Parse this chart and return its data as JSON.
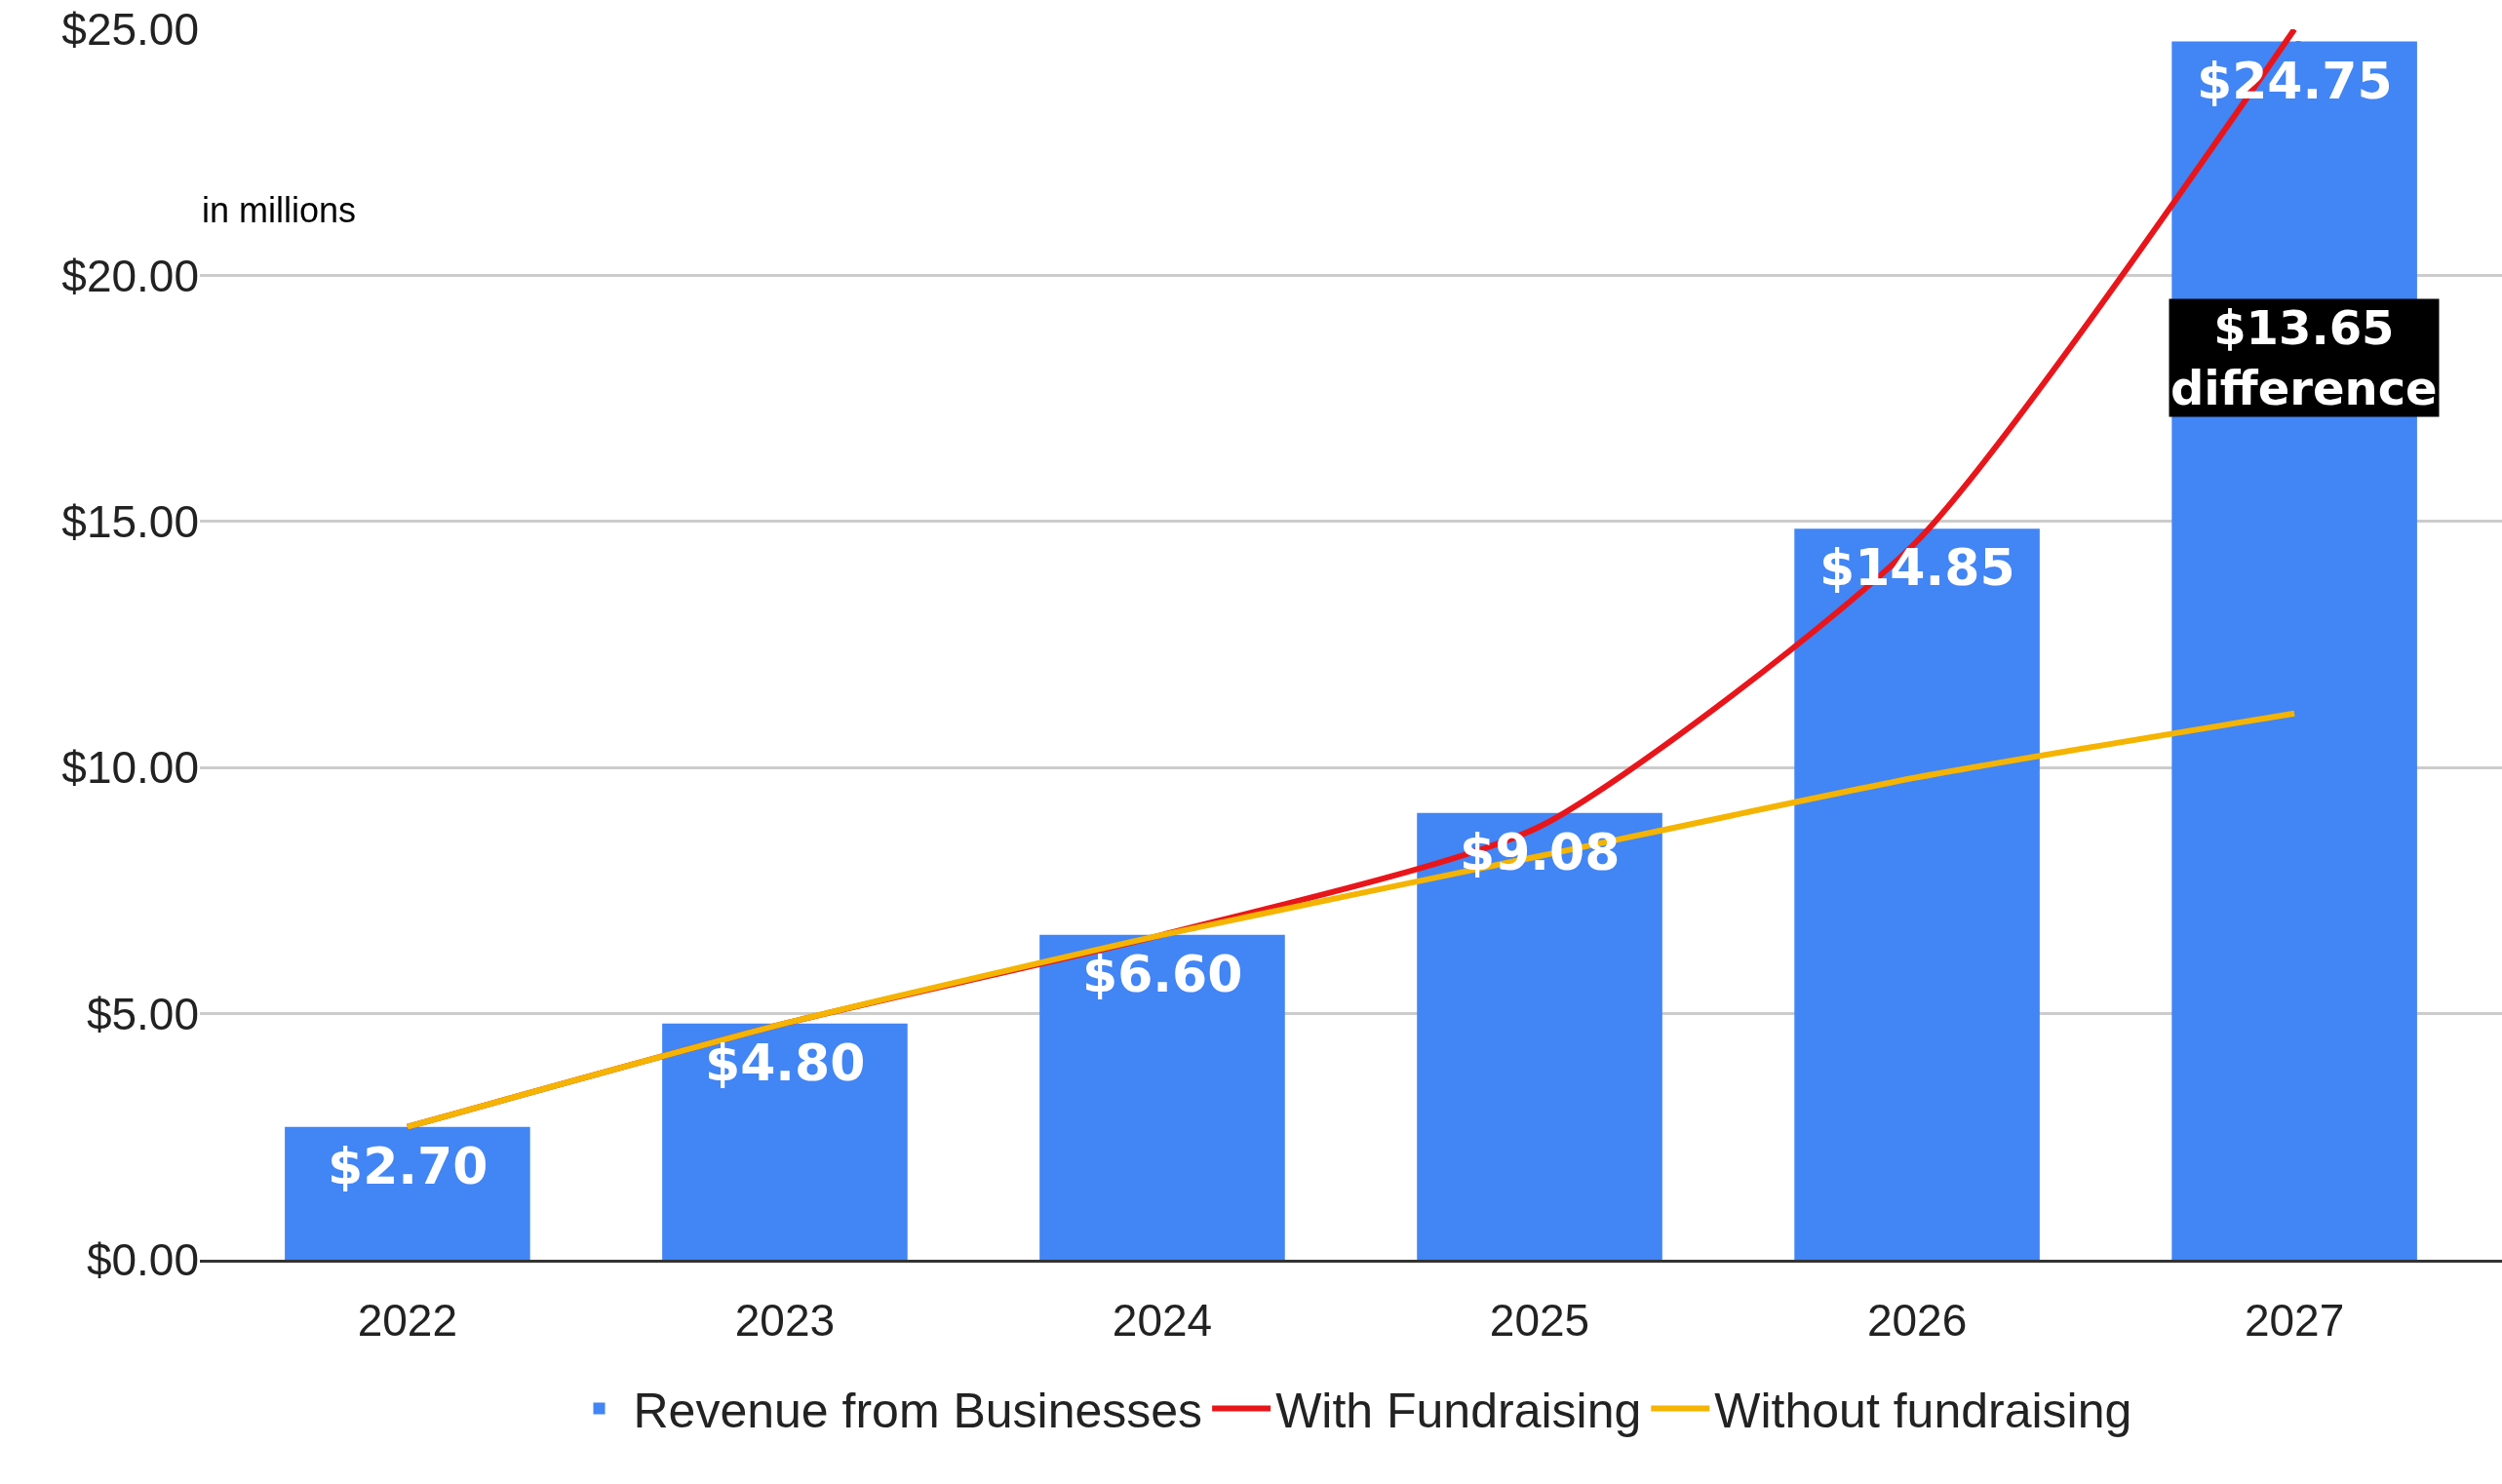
{
  "chart_data": {
    "type": "bar",
    "ylabel": "in millions",
    "categories": [
      "2022",
      "2023",
      "2024",
      "2025",
      "2026",
      "2027"
    ],
    "series": [
      {
        "name": "Revenue from Businesses",
        "color": "#4285f4",
        "values": [
          2.7,
          4.8,
          6.6,
          9.08,
          14.85,
          24.75
        ],
        "value_labels": [
          "$2.70",
          "$4.80",
          "$6.60",
          "$9.08",
          "$14.85",
          "$24.75"
        ]
      },
      {
        "name": "With Fundraising",
        "type": "line",
        "color": "#e8161b",
        "values": [
          2.7,
          4.8,
          6.6,
          8.8,
          14.6,
          25
        ]
      },
      {
        "name": "Without fundraising",
        "type": "line",
        "color": "#f4b400",
        "values": [
          2.7,
          4.8,
          6.6,
          8.2,
          9.8,
          11.1
        ]
      }
    ],
    "ylim": [
      0,
      25
    ],
    "yticks": [
      {
        "value": 0,
        "label": "$0.00"
      },
      {
        "value": 5,
        "label": "$5.00"
      },
      {
        "value": 10,
        "label": "$10.00"
      },
      {
        "value": 15,
        "label": "$15.00"
      },
      {
        "value": 20,
        "label": "$20.00"
      },
      {
        "value": 25,
        "label": "$25.00"
      }
    ],
    "grid": "y",
    "legend": "bottom",
    "marker": "none",
    "annotations": [
      "$13.65 difference"
    ]
  }
}
